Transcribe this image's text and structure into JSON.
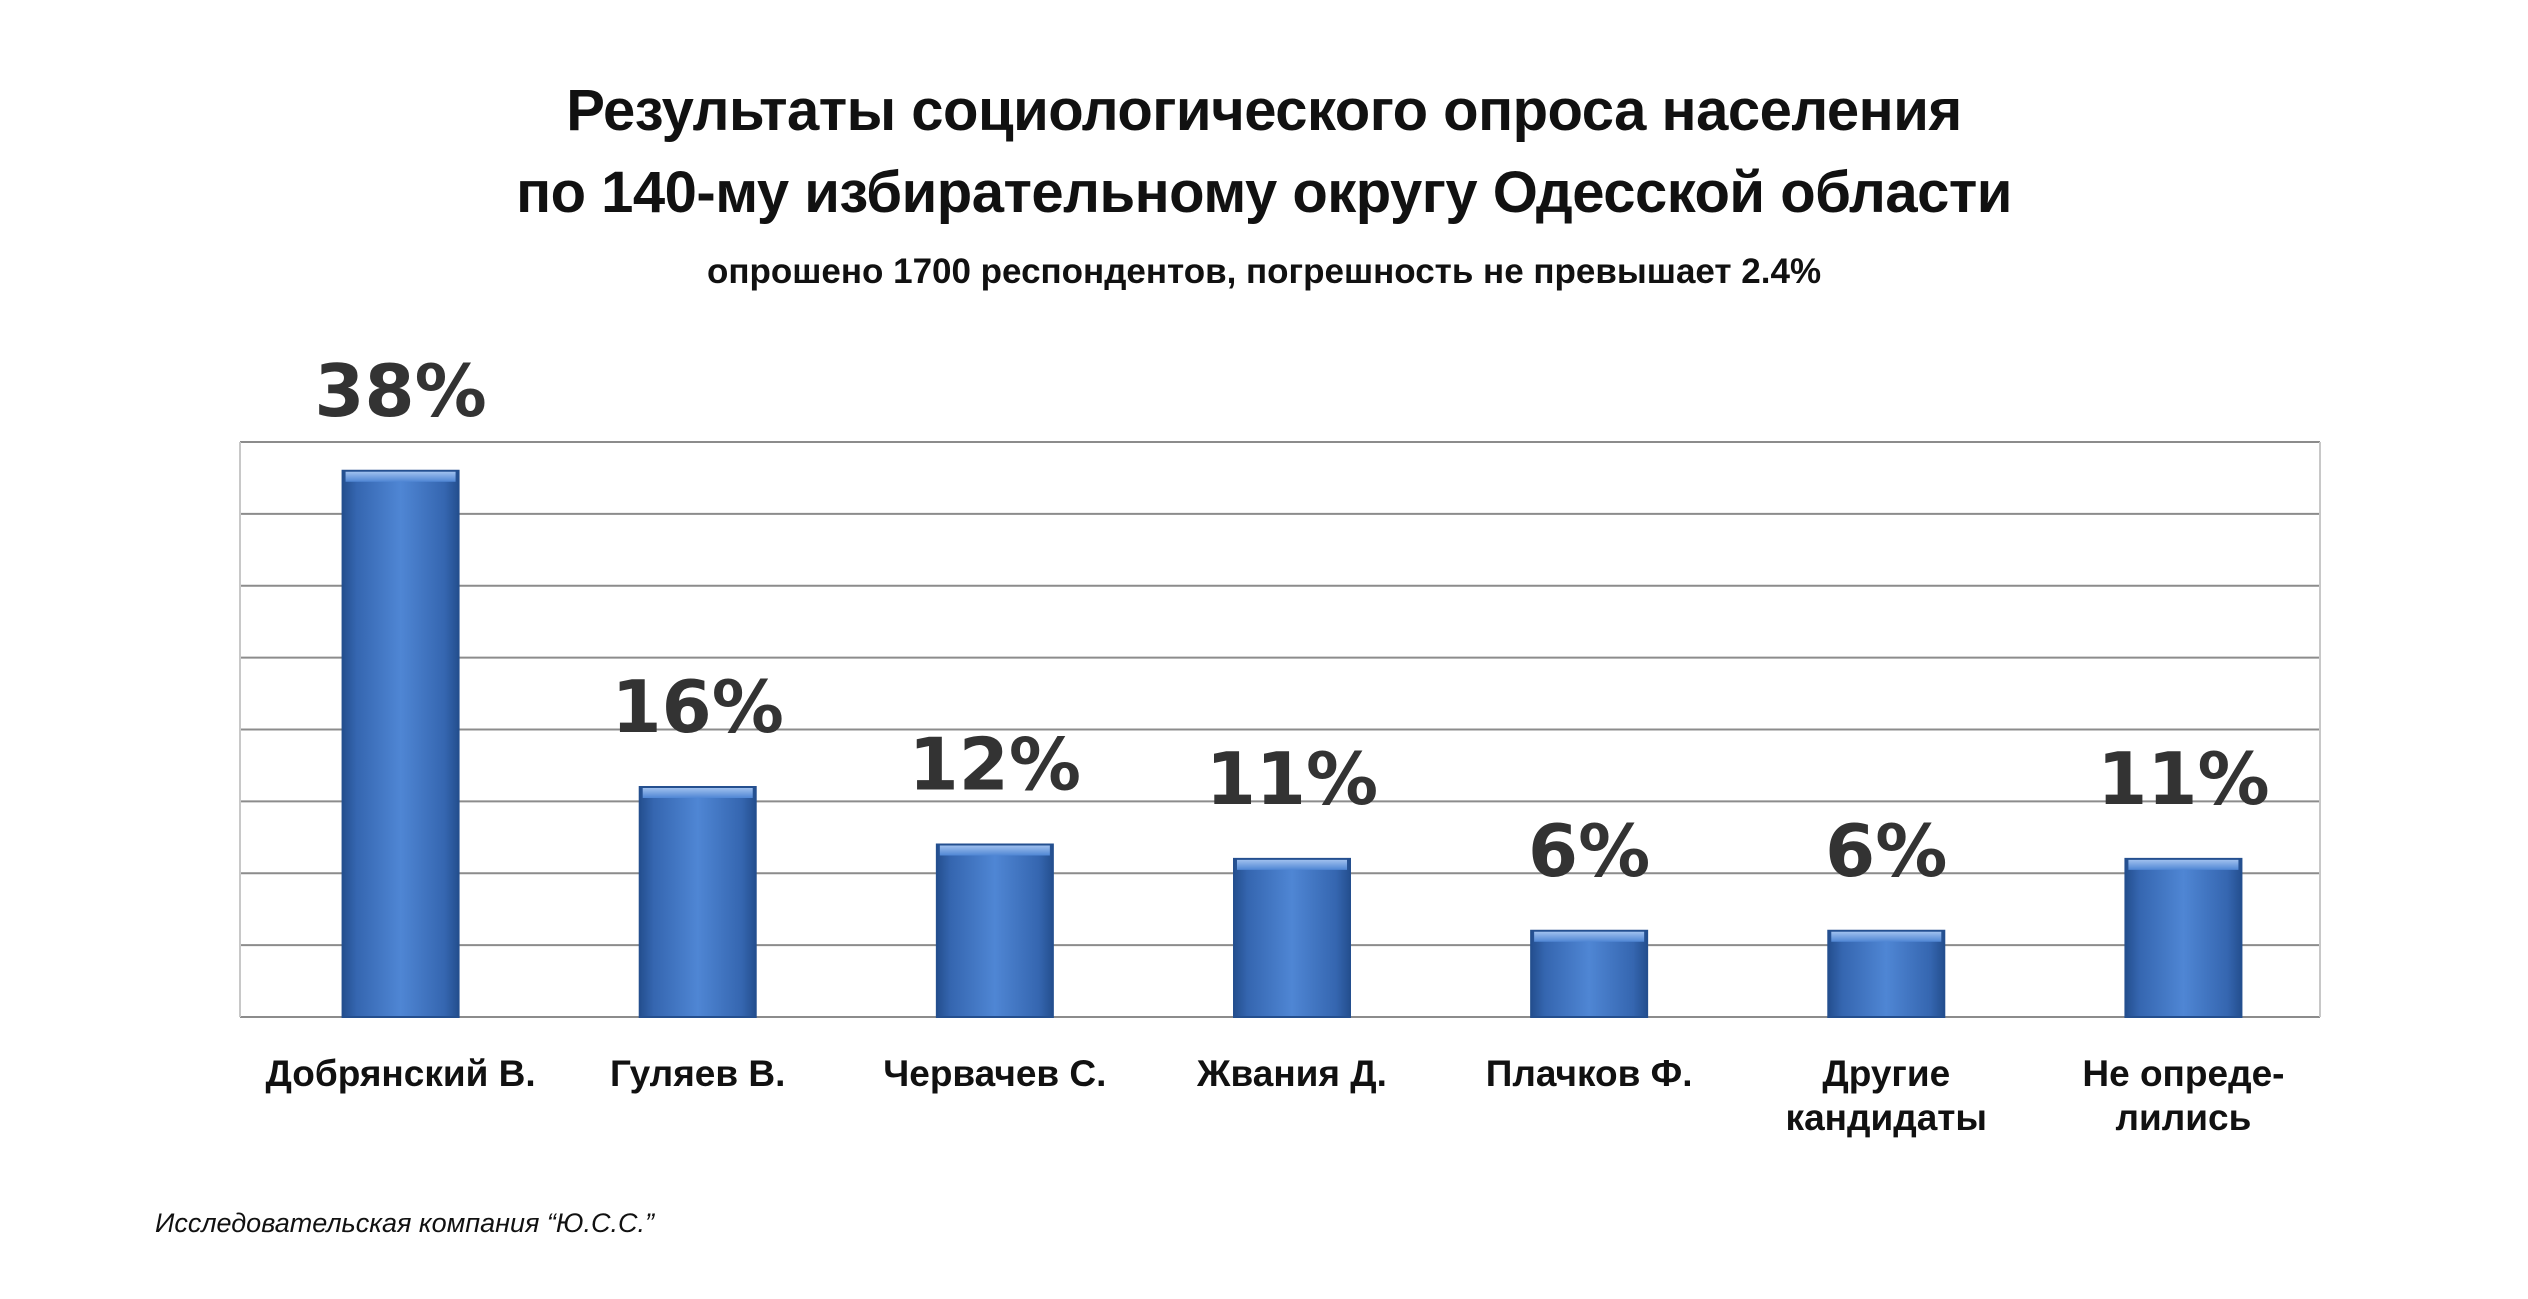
{
  "header": {
    "title_line1": "Результаты социологического опроса населения",
    "title_line2": "по 140-му избирательному округу Одесской области",
    "subtitle": "опрошено 1700 респондентов, погрешность не превышает 2.4%"
  },
  "footer": {
    "source": "Исследовательская компания “Ю.С.С.”"
  },
  "chart_data": {
    "type": "bar",
    "title": "Результаты социологического опроса населения по 140-му избирательному округу Одесской области",
    "subtitle": "опрошено 1700 респондентов, погрешность не превышает 2.4%",
    "categories": [
      [
        "Добрянский В."
      ],
      [
        "Гуляев В."
      ],
      [
        "Червачев С."
      ],
      [
        "Жвания Д."
      ],
      [
        "Плачков Ф."
      ],
      [
        "Другие",
        "кандидаты"
      ],
      [
        "Не опреде-",
        "лились"
      ]
    ],
    "values": [
      38,
      16,
      12,
      11,
      6,
      6,
      11
    ],
    "data_labels": [
      "38%",
      "16%",
      "12%",
      "11%",
      "6%",
      "6%",
      "11%"
    ],
    "unit": "%",
    "ylim": [
      0,
      40
    ],
    "grid": true,
    "bar_color": "#3f74c0",
    "bar_edge_color": "#244f8f",
    "grid_color": "#8c8c8c",
    "label_color": "#333333"
  }
}
